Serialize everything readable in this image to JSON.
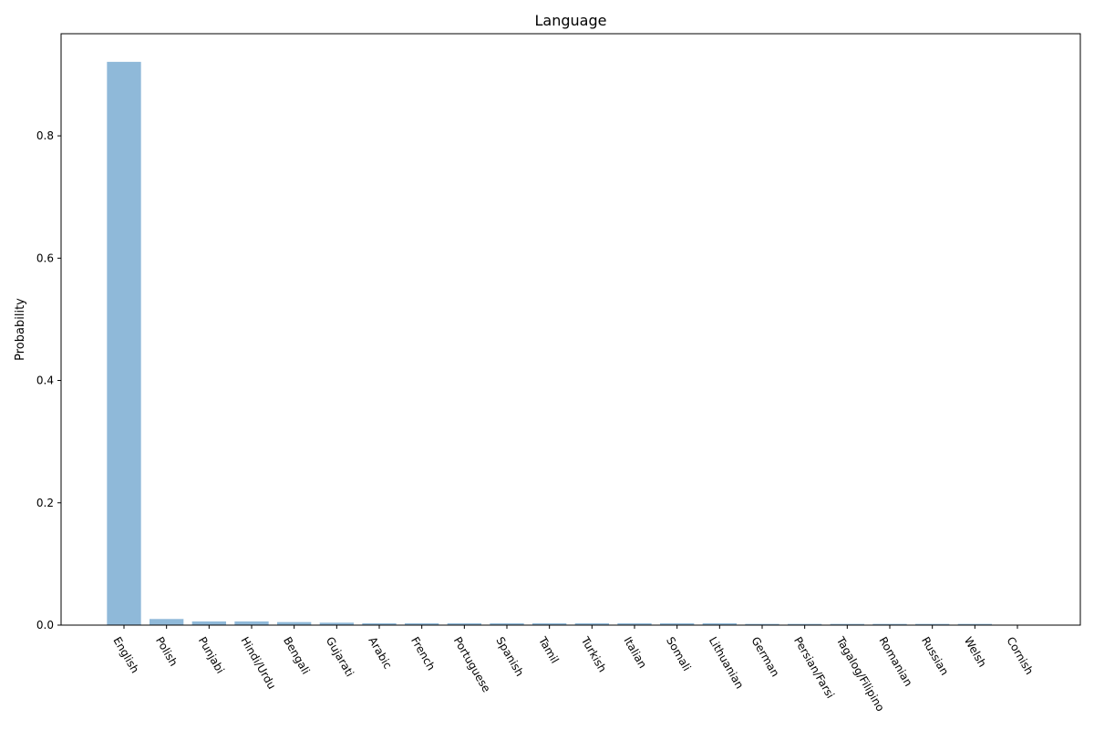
{
  "chart_data": {
    "type": "bar",
    "title": "Language",
    "xlabel": "",
    "ylabel": "Probability",
    "categories": [
      "English",
      "Polish",
      "Punjabi",
      "Hindi/Urdu",
      "Bengali",
      "Gujarati",
      "Arabic",
      "French",
      "Portuguese",
      "Spanish",
      "Tamil",
      "Turkish",
      "Italian",
      "Somali",
      "Lithuanian",
      "German",
      "Persian/Farsi",
      "Tagalog/Filipino",
      "Romanian",
      "Russian",
      "Welsh",
      "Cornish"
    ],
    "values": [
      0.921,
      0.01,
      0.006,
      0.006,
      0.005,
      0.004,
      0.003,
      0.003,
      0.003,
      0.003,
      0.003,
      0.003,
      0.003,
      0.003,
      0.003,
      0.002,
      0.002,
      0.002,
      0.002,
      0.002,
      0.002,
      0.0005
    ],
    "ylim": [
      0,
      0.967
    ],
    "yticks": [
      0.0,
      0.2,
      0.4,
      0.6,
      0.8
    ],
    "ytick_labels": [
      "0.0",
      "0.2",
      "0.4",
      "0.6",
      "0.8"
    ],
    "grid": false,
    "bar_color": "#8fb9d9"
  }
}
